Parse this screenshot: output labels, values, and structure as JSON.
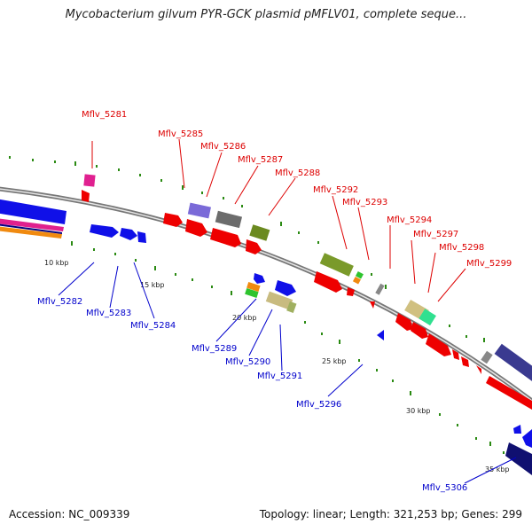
{
  "title": "Mycobacterium gilvum PYR-GCK plasmid pMFLV01, complete seque...",
  "accession": "Accession: NC_009339",
  "summary": "Topology: linear; Length: 321,253 bp; Genes: 299",
  "colors": {
    "forward_label": "#dd0000",
    "reverse_label": "#0000cc",
    "backbone": "#8a8a8a",
    "tick_green": "#2a8a12"
  },
  "ticks": [
    "10 kbp",
    "15 kbp",
    "20 kbp",
    "25 kbp",
    "30 kbp",
    "35 kbp"
  ],
  "genes": [
    {
      "id": "Mflv_5281",
      "strand": "forward"
    },
    {
      "id": "Mflv_5282",
      "strand": "reverse"
    },
    {
      "id": "Mflv_5283",
      "strand": "reverse"
    },
    {
      "id": "Mflv_5284",
      "strand": "reverse"
    },
    {
      "id": "Mflv_5285",
      "strand": "forward"
    },
    {
      "id": "Mflv_5286",
      "strand": "forward"
    },
    {
      "id": "Mflv_5287",
      "strand": "forward"
    },
    {
      "id": "Mflv_5288",
      "strand": "forward"
    },
    {
      "id": "Mflv_5289",
      "strand": "reverse"
    },
    {
      "id": "Mflv_5290",
      "strand": "reverse"
    },
    {
      "id": "Mflv_5291",
      "strand": "reverse"
    },
    {
      "id": "Mflv_5292",
      "strand": "forward"
    },
    {
      "id": "Mflv_5293",
      "strand": "forward"
    },
    {
      "id": "Mflv_5294",
      "strand": "forward"
    },
    {
      "id": "Mflv_5296",
      "strand": "reverse"
    },
    {
      "id": "Mflv_5297",
      "strand": "forward"
    },
    {
      "id": "Mflv_5298",
      "strand": "forward"
    },
    {
      "id": "Mflv_5299",
      "strand": "forward"
    },
    {
      "id": "Mflv_5306",
      "strand": "reverse"
    }
  ]
}
